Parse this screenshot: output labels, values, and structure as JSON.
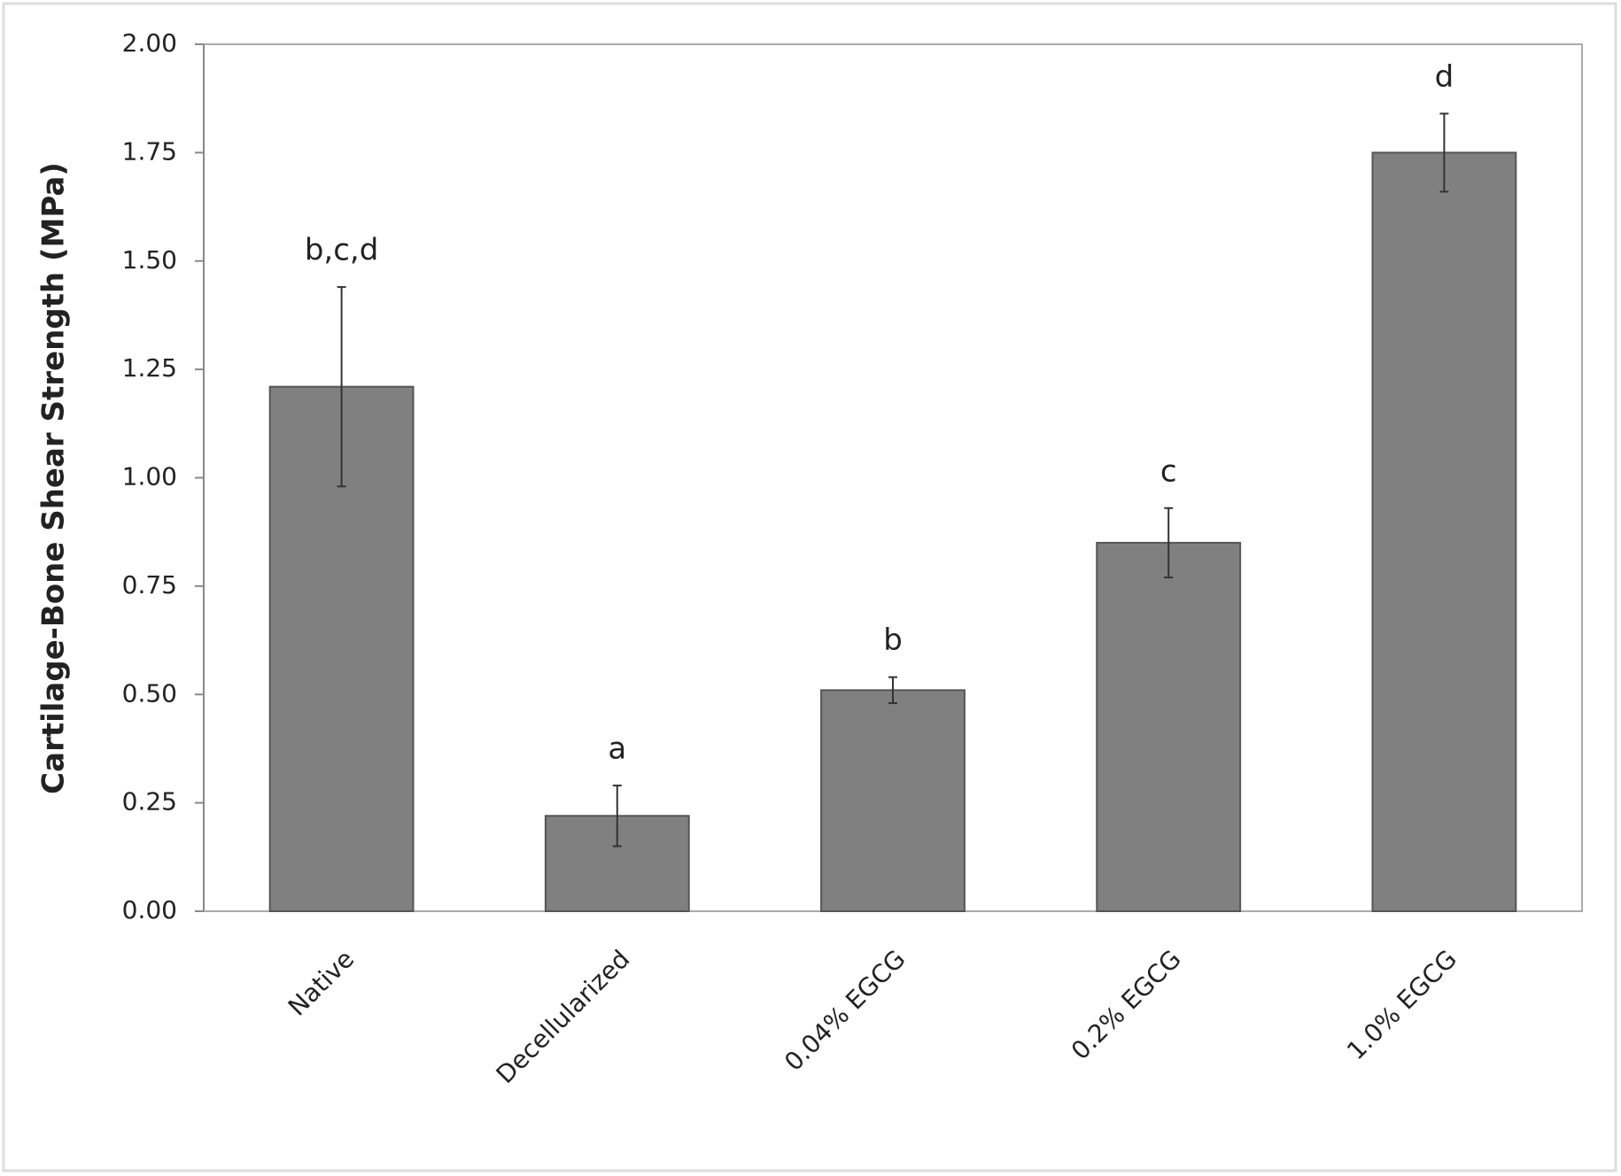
{
  "chart_data": {
    "type": "bar",
    "y_label": "Cartilage-Bone Shear Strength (MPa)",
    "categories": [
      "Native",
      "Decellularized",
      "0.04% EGCG",
      "0.2% EGCG",
      "1.0% EGCG"
    ],
    "values": [
      1.21,
      0.22,
      0.51,
      0.85,
      1.75
    ],
    "errors": [
      0.23,
      0.07,
      0.03,
      0.08,
      0.09
    ],
    "annotations": [
      "b,c,d",
      "a",
      "b",
      "c",
      "d"
    ],
    "color": "#808080",
    "ylim": [
      0,
      2
    ],
    "yticks": [
      {
        "value": 0,
        "label": "0.00"
      },
      {
        "value": 0.25,
        "label": "0.25"
      },
      {
        "value": 0.5,
        "label": "0.50"
      },
      {
        "value": 0.75,
        "label": "0.75"
      },
      {
        "value": 1,
        "label": "1.00"
      },
      {
        "value": 1.25,
        "label": "1.25"
      },
      {
        "value": 1.5,
        "label": "1.50"
      },
      {
        "value": 1.75,
        "label": "1.75"
      },
      {
        "value": 2,
        "label": "2.00"
      }
    ],
    "grid": false
  }
}
